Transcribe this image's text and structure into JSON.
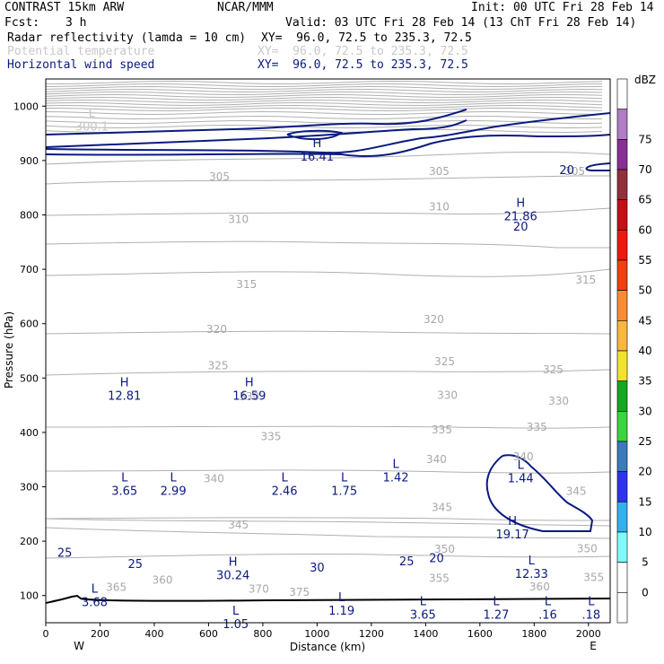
{
  "header": {
    "model": "CONTRAST 15km ARW",
    "center": "NCAR/MMM",
    "init": "Init: 00 UTC Fri 28 Feb 14",
    "fcst_label": "Fcst:",
    "fcst_value": "3 h",
    "valid": "Valid: 03 UTC Fri 28 Feb 14 (13 ChT Fri 28 Feb 14)",
    "fields": [
      {
        "name": "Radar reflectivity (lamda = 10 cm)",
        "xy": "XY=  96.0, 72.5 to 235.3, 72.5",
        "color": "#000000"
      },
      {
        "name": "Potential temperature",
        "xy": "XY=  96.0, 72.5 to 235.3, 72.5",
        "color": "#c8c8c8"
      },
      {
        "name": "Horizontal wind speed",
        "xy": "XY=  96.0, 72.5 to 235.3, 72.5",
        "color": "#0a1a80"
      }
    ]
  },
  "colorbar": {
    "unit": "dBZ",
    "levels": [
      "0",
      "5",
      "10",
      "15",
      "20",
      "25",
      "30",
      "35",
      "40",
      "45",
      "50",
      "55",
      "60",
      "65",
      "70",
      "75"
    ],
    "colors": [
      "#ffffff",
      "#ffffff",
      "#7ffbff",
      "#33b0f0",
      "#2d33ee",
      "#3a7bbd",
      "#39d53f",
      "#14a820",
      "#f2e230",
      "#f9b740",
      "#f98c33",
      "#f3400f",
      "#ed1a10",
      "#c30f16",
      "#92303c",
      "#8a2e96",
      "#b07cc6",
      "#ffffff"
    ]
  },
  "chart_data": {
    "type": "contour",
    "xlabel": "Distance (km)",
    "ylabel": "Pressure (hPa)",
    "xlim": [
      0,
      2080
    ],
    "ylim": [
      1050,
      50
    ],
    "x_ticks": [
      0,
      200,
      400,
      600,
      800,
      1000,
      1200,
      1400,
      1600,
      1800,
      2000
    ],
    "y_ticks": [
      100,
      200,
      300,
      400,
      500,
      600,
      700,
      800,
      900,
      1000
    ],
    "end_labels": {
      "left": "W",
      "right": "E"
    },
    "theta_labels": [
      {
        "text": "365",
        "x": 260,
        "p": 115
      },
      {
        "text": "360",
        "x": 430,
        "p": 128
      },
      {
        "text": "370",
        "x": 785,
        "p": 112
      },
      {
        "text": "375",
        "x": 935,
        "p": 106
      },
      {
        "text": "355",
        "x": 1450,
        "p": 132
      },
      {
        "text": "360",
        "x": 1820,
        "p": 116
      },
      {
        "text": "355",
        "x": 2020,
        "p": 133
      },
      {
        "text": "350",
        "x": 1470,
        "p": 185
      },
      {
        "text": "350",
        "x": 1995,
        "p": 186
      },
      {
        "text": "345",
        "x": 710,
        "p": 230
      },
      {
        "text": "345",
        "x": 1460,
        "p": 262
      },
      {
        "text": "345",
        "x": 1955,
        "p": 292
      },
      {
        "text": "340",
        "x": 620,
        "p": 315
      },
      {
        "text": "340",
        "x": 1440,
        "p": 350
      },
      {
        "text": "340",
        "x": 1760,
        "p": 355
      },
      {
        "text": "335",
        "x": 830,
        "p": 392
      },
      {
        "text": "335",
        "x": 1460,
        "p": 405
      },
      {
        "text": "335",
        "x": 1810,
        "p": 410
      },
      {
        "text": "330",
        "x": 750,
        "p": 466
      },
      {
        "text": "330",
        "x": 1480,
        "p": 468
      },
      {
        "text": "330",
        "x": 1890,
        "p": 458
      },
      {
        "text": "325",
        "x": 635,
        "p": 523
      },
      {
        "text": "325",
        "x": 1470,
        "p": 530
      },
      {
        "text": "325",
        "x": 1870,
        "p": 515
      },
      {
        "text": "320",
        "x": 630,
        "p": 590
      },
      {
        "text": "320",
        "x": 1430,
        "p": 608
      },
      {
        "text": "315",
        "x": 740,
        "p": 672
      },
      {
        "text": "315",
        "x": 1990,
        "p": 680
      },
      {
        "text": "310",
        "x": 710,
        "p": 792
      },
      {
        "text": "310",
        "x": 1450,
        "p": 815
      },
      {
        "text": "305",
        "x": 640,
        "p": 870
      },
      {
        "text": "305",
        "x": 1450,
        "p": 880
      },
      {
        "text": "305",
        "x": 1950,
        "p": 880
      }
    ],
    "wind_labels": [
      {
        "text": "25",
        "x": 70,
        "p": 178
      },
      {
        "text": "25",
        "x": 330,
        "p": 157
      },
      {
        "text": "30",
        "x": 1000,
        "p": 151
      },
      {
        "text": "25",
        "x": 1330,
        "p": 162
      },
      {
        "text": "20",
        "x": 1440,
        "p": 168
      },
      {
        "text": "20",
        "x": 1750,
        "p": 778
      },
      {
        "text": "20",
        "x": 1920,
        "p": 882
      }
    ],
    "extrema": [
      {
        "kind": "L",
        "value": "1.05",
        "x": 700,
        "p": 60,
        "color": "#0a1a80"
      },
      {
        "kind": "L",
        "value": "3.68",
        "x": 180,
        "p": 100,
        "color": "#0a1a80"
      },
      {
        "kind": "L",
        "value": "1.19",
        "x": 1090,
        "p": 85,
        "color": "#0a1a80"
      },
      {
        "kind": "L",
        "value": "3.65",
        "x": 1390,
        "p": 77,
        "color": "#0a1a80"
      },
      {
        "kind": "L",
        "value": "1.27",
        "x": 1660,
        "p": 77,
        "color": "#0a1a80"
      },
      {
        "kind": "L",
        "value": ".16",
        "x": 1850,
        "p": 77,
        "color": "#0a1a80"
      },
      {
        "kind": "L",
        "value": ".18",
        "x": 2010,
        "p": 77,
        "color": "#0a1a80"
      },
      {
        "kind": "H",
        "value": "30.24",
        "x": 690,
        "p": 150,
        "color": "#0a1a80"
      },
      {
        "kind": "L",
        "value": "12.33",
        "x": 1790,
        "p": 152,
        "color": "#0a1a80"
      },
      {
        "kind": "H",
        "value": "19.17",
        "x": 1720,
        "p": 225,
        "color": "#0a1a80"
      },
      {
        "kind": "L",
        "value": "3.65",
        "x": 290,
        "p": 305,
        "color": "#0a1a80"
      },
      {
        "kind": "L",
        "value": "2.99",
        "x": 470,
        "p": 305,
        "color": "#0a1a80"
      },
      {
        "kind": "L",
        "value": "2.46",
        "x": 880,
        "p": 305,
        "color": "#0a1a80"
      },
      {
        "kind": "L",
        "value": "1.75",
        "x": 1100,
        "p": 305,
        "color": "#0a1a80"
      },
      {
        "kind": "L",
        "value": "1.42",
        "x": 1290,
        "p": 330,
        "color": "#0a1a80"
      },
      {
        "kind": "L",
        "value": "1.44",
        "x": 1750,
        "p": 328,
        "color": "#0a1a80"
      },
      {
        "kind": "H",
        "value": "12.81",
        "x": 290,
        "p": 480,
        "color": "#0a1a80"
      },
      {
        "kind": "H",
        "value": "16.59",
        "x": 750,
        "p": 480,
        "color": "#0a1a80"
      },
      {
        "kind": "H",
        "value": "21.86",
        "x": 1750,
        "p": 810,
        "color": "#0a1a80"
      },
      {
        "kind": "H",
        "value": "16.41",
        "x": 1000,
        "p": 920,
        "color": "#0a1a80"
      },
      {
        "kind": "L",
        "value": "300.1",
        "x": 170,
        "p": 975,
        "color": "#c8c8c8"
      }
    ]
  }
}
